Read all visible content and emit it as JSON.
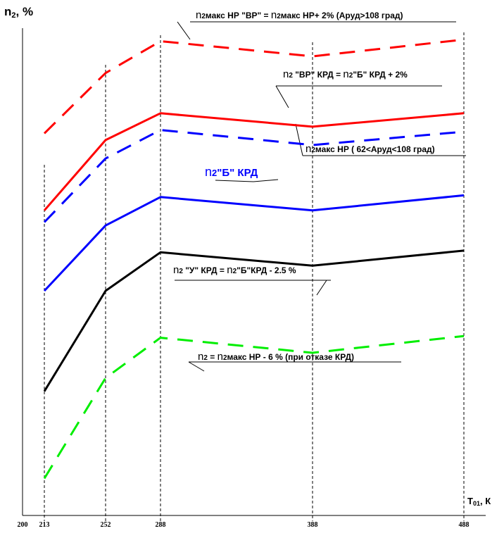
{
  "chart_data": {
    "type": "line",
    "ylabel": "n₂, %",
    "xlabel": "Т₀₁, К",
    "x": [
      213,
      252,
      288,
      388,
      488
    ],
    "x_ticks": [
      "200",
      "213",
      "252",
      "288",
      "388",
      "488"
    ],
    "x_range": [
      200,
      488
    ],
    "grid": "vertical dashed lines at 213, 252, 288, 388, 488",
    "y_scale": "relative, no tick values shown",
    "series": [
      {
        "name": "n2макс НР \"ВР\" = n2макс НР+ 2% (Аруд>108 град)",
        "color": "#ff0000",
        "style": "dashed",
        "values": [
          94.3,
          97.9,
          99.8,
          98.9,
          99.9
        ]
      },
      {
        "name": "n2 \"ВР\" КРД = n2\"Б\" КРД + 2%",
        "color": "#ff0000",
        "style": "solid",
        "values": [
          89.7,
          93.9,
          95.5,
          94.7,
          95.5
        ]
      },
      {
        "name": "n2макс НР (  62<Аруд<108 град)",
        "color": "#0000ff",
        "style": "dashed",
        "values": [
          89.0,
          92.8,
          94.5,
          93.6,
          94.4
        ]
      },
      {
        "name": "n2\"Б\" КРД",
        "color": "#0000ff",
        "style": "solid",
        "values": [
          84.9,
          88.8,
          90.5,
          89.7,
          90.6
        ]
      },
      {
        "name": "n2 \"У\" КРД = n2\"Б\"КРД - 2.5 %",
        "color": "#000000",
        "style": "solid",
        "values": [
          78.9,
          84.9,
          87.2,
          86.4,
          87.3
        ]
      },
      {
        "name": "n2 = n2макс НР - 6 % (при отказе КРД)",
        "color": "#00ee00",
        "style": "dashed",
        "values": [
          73.7,
          79.7,
          82.1,
          81.2,
          82.2
        ]
      }
    ],
    "labels": [
      {
        "text": "n2макс НР \"ВР\" = n2макс НР+ 2% (Аруд>108 град)",
        "color": "#000000"
      },
      {
        "text": "n2 \"ВР\" КРД = n2\"Б\" КРД + 2%",
        "color": "#000000"
      },
      {
        "text": "n2макс НР (  62<Аруд<108 град)",
        "color": "#000000"
      },
      {
        "text": "n2\"Б\" КРД",
        "color": "#0000ff"
      },
      {
        "text": "n2 \"У\" КРД = n2\"Б\"КРД - 2.5 %",
        "color": "#000000"
      },
      {
        "text": "n2 = n2макс НР - 6 % (при отказе КРД)",
        "color": "#000000"
      }
    ]
  }
}
